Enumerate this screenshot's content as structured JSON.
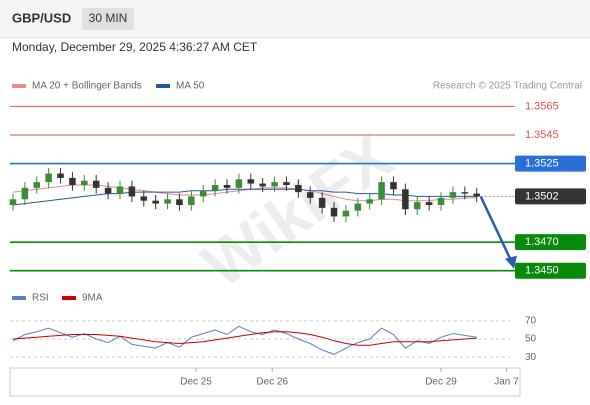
{
  "chart_data": {
    "type": "candlestick",
    "title": "GBP/USD",
    "timeframe": "30 MIN",
    "subtitle": "Monday, December 29, 2025 4:36:27 AM CET",
    "credit": "Research © 2025 Trading Central",
    "watermark": "WikiFX",
    "xlim": [
      -0.25,
      41.8
    ],
    "xticks": [
      {
        "value": 15.4,
        "label": "Dec 25"
      },
      {
        "value": 21.8,
        "label": "Dec 26"
      },
      {
        "value": 36,
        "label": "Dec 29"
      },
      {
        "value": 41.5,
        "label": "Jan 7"
      }
    ],
    "price": {
      "ylim": [
        1.344,
        1.3573
      ],
      "up_color": "#3c8c3c",
      "down_color": "#333333",
      "open": [
        1.3496,
        1.35,
        1.3508,
        1.3512,
        1.3518,
        1.3515,
        1.351,
        1.3513,
        1.3508,
        1.3504,
        1.3509,
        1.3502,
        1.3499,
        1.3497,
        1.35,
        1.3496,
        1.3502,
        1.3506,
        1.351,
        1.3508,
        1.3514,
        1.3511,
        1.3509,
        1.3512,
        1.351,
        1.3505,
        1.3501,
        1.3494,
        1.3488,
        1.3492,
        1.3497,
        1.35,
        1.3512,
        1.3507,
        1.3493,
        1.3498,
        1.3496,
        1.3501,
        1.3505,
        1.3504
      ],
      "high": [
        1.3504,
        1.3512,
        1.3516,
        1.3522,
        1.3522,
        1.3519,
        1.3517,
        1.3517,
        1.3512,
        1.3513,
        1.3513,
        1.3506,
        1.3503,
        1.3504,
        1.3504,
        1.3506,
        1.351,
        1.3514,
        1.3514,
        1.3518,
        1.3518,
        1.3515,
        1.3516,
        1.3516,
        1.3514,
        1.3509,
        1.3505,
        1.3498,
        1.3496,
        1.3501,
        1.3504,
        1.3516,
        1.3516,
        1.3511,
        1.3502,
        1.3502,
        1.3505,
        1.3509,
        1.3509,
        1.3508
      ],
      "low": [
        1.3492,
        1.3496,
        1.3504,
        1.3508,
        1.3511,
        1.3506,
        1.3506,
        1.3504,
        1.35,
        1.35,
        1.3498,
        1.3495,
        1.3493,
        1.3493,
        1.3492,
        1.3492,
        1.3498,
        1.3502,
        1.3504,
        1.3504,
        1.3507,
        1.3505,
        1.3505,
        1.3506,
        1.3501,
        1.3497,
        1.349,
        1.3484,
        1.3484,
        1.3488,
        1.3493,
        1.3496,
        1.3503,
        1.3489,
        1.3489,
        1.3492,
        1.3492,
        1.3497,
        1.35,
        1.3498
      ],
      "close": [
        1.35,
        1.3508,
        1.3512,
        1.3518,
        1.3515,
        1.351,
        1.3513,
        1.3508,
        1.3504,
        1.3509,
        1.3502,
        1.3499,
        1.3497,
        1.35,
        1.3496,
        1.3502,
        1.3506,
        1.351,
        1.3508,
        1.3514,
        1.3511,
        1.3509,
        1.3512,
        1.351,
        1.3505,
        1.3501,
        1.3494,
        1.3488,
        1.3492,
        1.3497,
        1.35,
        1.3512,
        1.3507,
        1.3493,
        1.3498,
        1.3496,
        1.3501,
        1.3505,
        1.3504,
        1.3502
      ],
      "series": [
        {
          "name": "MA 20 + Bollinger Bands",
          "color": "#e88a8a",
          "values": [
            1.3505,
            1.3506,
            1.3507,
            1.3508,
            1.3509,
            1.351,
            1.351,
            1.351,
            1.3509,
            1.3508,
            1.3507,
            1.3506,
            1.3505,
            1.3504,
            1.3503,
            1.3503,
            1.3503,
            1.3504,
            1.3505,
            1.3506,
            1.3507,
            1.3508,
            1.3508,
            1.3508,
            1.3507,
            1.3506,
            1.3504,
            1.3502,
            1.35,
            1.3499,
            1.3499,
            1.35,
            1.35,
            1.3499,
            1.3499,
            1.3499,
            1.35,
            1.35,
            1.3501,
            1.3501
          ]
        },
        {
          "name": "MA 50",
          "color": "#2b5797",
          "values": [
            1.3496,
            1.3497,
            1.3498,
            1.3499,
            1.35,
            1.3501,
            1.3502,
            1.3503,
            1.3504,
            1.3504,
            1.3505,
            1.3505,
            1.3505,
            1.3505,
            1.3505,
            1.3506,
            1.3506,
            1.3506,
            1.3507,
            1.3507,
            1.3507,
            1.3507,
            1.3507,
            1.3507,
            1.3507,
            1.3506,
            1.3506,
            1.3505,
            1.3505,
            1.3504,
            1.3504,
            1.3504,
            1.3503,
            1.3503,
            1.3502,
            1.3502,
            1.3502,
            1.3502,
            1.3502,
            1.3502
          ]
        }
      ],
      "levels": [
        {
          "value": 1.3565,
          "label": "1.3565",
          "color": "#d9534f",
          "boxed": false
        },
        {
          "value": 1.3545,
          "label": "1.3545",
          "color": "#d9534f",
          "boxed": false
        },
        {
          "value": 1.3525,
          "label": "1.3525",
          "color": "#2a6fd6",
          "boxed": true
        },
        {
          "value": 1.3502,
          "label": "1.3502",
          "color": "#333333",
          "boxed": true
        },
        {
          "value": 1.347,
          "label": "1.3470",
          "color": "#0a8a0a",
          "boxed": true
        },
        {
          "value": 1.345,
          "label": "1.3450",
          "color": "#0a8a0a",
          "boxed": true
        }
      ]
    },
    "rsi": {
      "ylim": [
        18,
        82
      ],
      "yticks": [
        70,
        50,
        30
      ],
      "series": [
        {
          "name": "RSI",
          "color": "#5b7fc7",
          "values": [
            48,
            55,
            58,
            62,
            57,
            52,
            56,
            50,
            46,
            53,
            44,
            42,
            40,
            46,
            41,
            52,
            56,
            60,
            55,
            64,
            58,
            55,
            60,
            56,
            50,
            45,
            38,
            33,
            40,
            46,
            50,
            62,
            55,
            40,
            48,
            45,
            52,
            56,
            54,
            52
          ]
        },
        {
          "name": "9MA",
          "color": "#cc0000",
          "values": [
            50,
            51,
            52,
            53,
            54,
            55,
            55,
            55,
            54,
            53,
            51,
            49,
            47,
            46,
            45,
            46,
            47,
            49,
            51,
            53,
            55,
            57,
            58,
            58,
            57,
            55,
            52,
            48,
            45,
            43,
            43,
            45,
            47,
            47,
            47,
            47,
            48,
            49,
            50,
            51
          ]
        }
      ]
    }
  }
}
